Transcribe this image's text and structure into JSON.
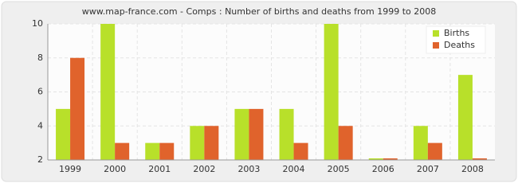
{
  "chart_data": {
    "type": "bar",
    "title": "www.map-france.com - Comps : Number of births and deaths from 1999 to 2008",
    "categories": [
      "1999",
      "2000",
      "2001",
      "2002",
      "2003",
      "2004",
      "2005",
      "2006",
      "2007",
      "2008"
    ],
    "series": [
      {
        "name": "Births",
        "color": "#b8e02a",
        "values": [
          5,
          10,
          3,
          4,
          5,
          5,
          10,
          2,
          4,
          7
        ]
      },
      {
        "name": "Deaths",
        "color": "#e0632c",
        "values": [
          8,
          3,
          3,
          4,
          5,
          3,
          4,
          2,
          3,
          2
        ]
      }
    ],
    "ylim": [
      2,
      10
    ],
    "yticks": [
      2,
      4,
      6,
      8,
      10
    ],
    "grid": true,
    "legend": "top-right"
  }
}
